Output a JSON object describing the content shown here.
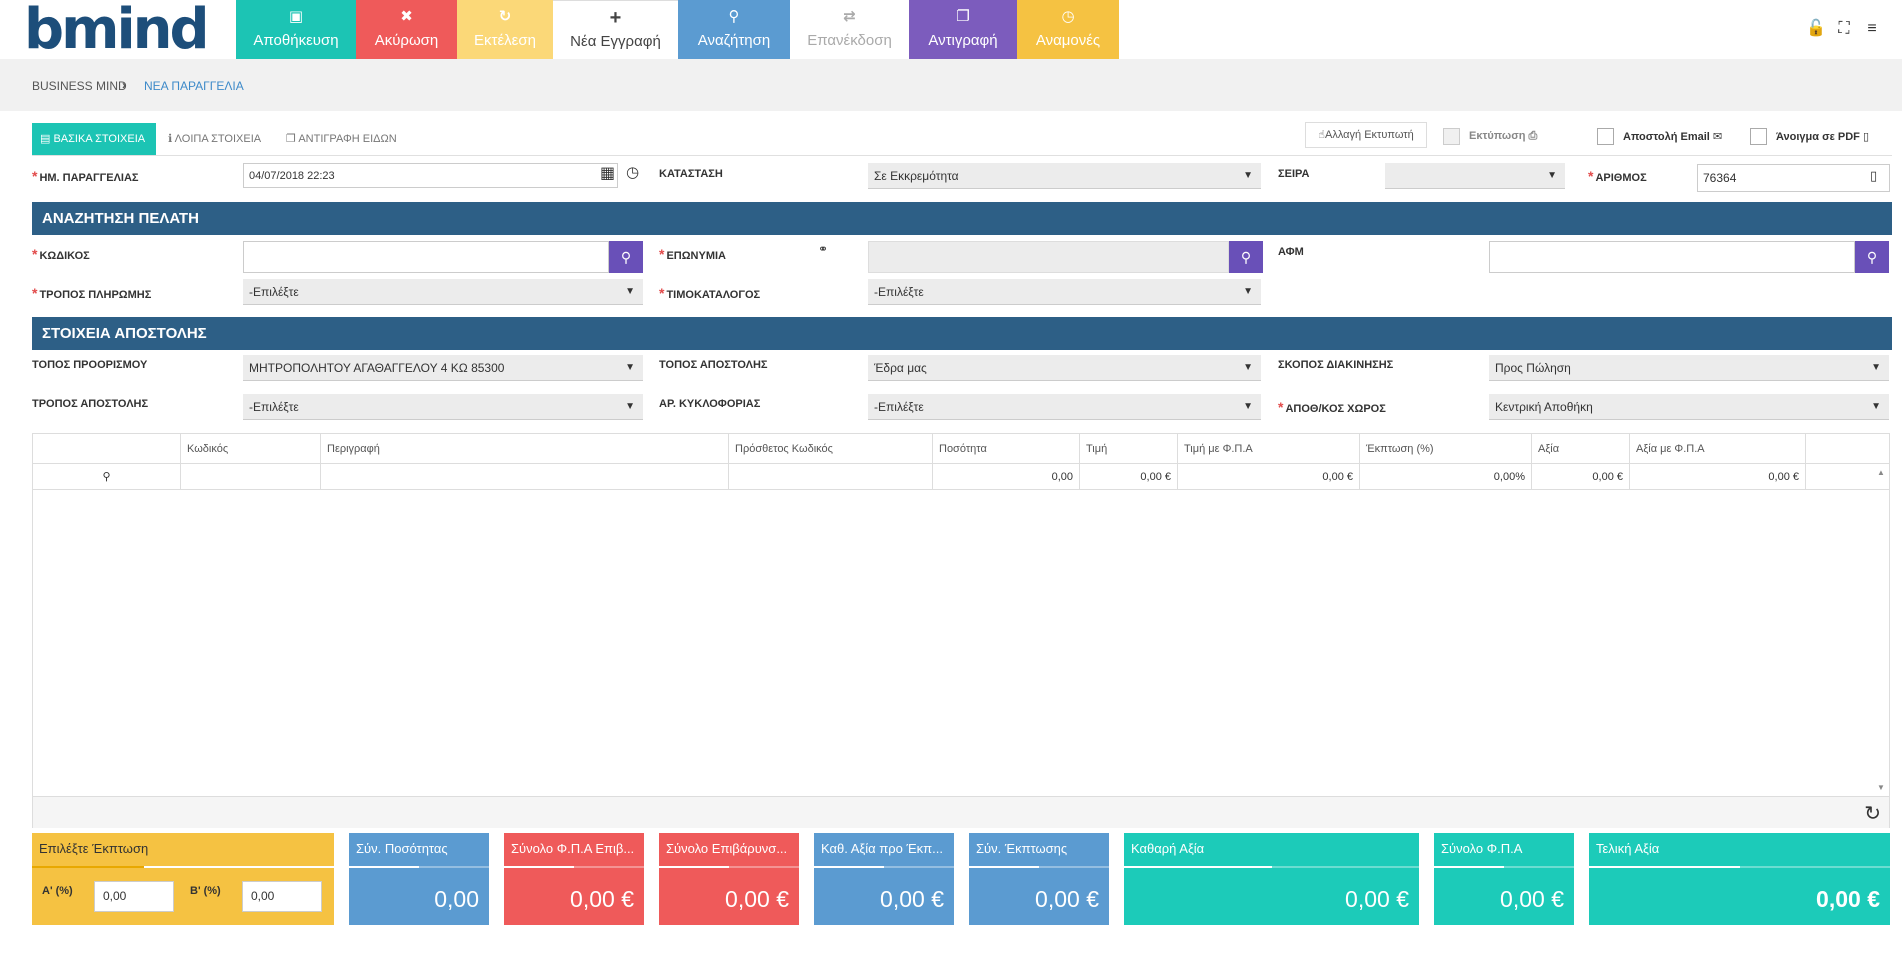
{
  "logo": {
    "text": "bmind"
  },
  "toolbar": [
    {
      "id": "save",
      "icon": "save-icon",
      "glyph": "▣",
      "label": "Αποθήκευση"
    },
    {
      "id": "cancel",
      "icon": "trash-icon",
      "glyph": "🗑",
      "label": "Ακύρωση"
    },
    {
      "id": "run",
      "icon": "refresh-icon",
      "glyph": "↻",
      "label": "Εκτέλεση"
    },
    {
      "id": "new",
      "icon": "plus-icon",
      "glyph": "+",
      "label": "Νέα Εγγραφή"
    },
    {
      "id": "search",
      "icon": "search-icon",
      "glyph": "⚲",
      "label": "Αναζήτηση"
    },
    {
      "id": "reissue",
      "icon": "retweet-icon",
      "glyph": "⇄",
      "label": "Επανέκδοση"
    },
    {
      "id": "copy",
      "icon": "copy-icon",
      "glyph": "❐",
      "label": "Αντιγραφή"
    },
    {
      "id": "pend",
      "icon": "clock-icon",
      "glyph": "◷",
      "label": "Αναμονές"
    }
  ],
  "breadcrumb": {
    "root": "BUSINESS MIND",
    "sep": "›",
    "current": "ΝΕΑ ΠΑΡΑΓΓΕΛΙΑ"
  },
  "tabs": {
    "basic": "ΒΑΣΙΚΑ ΣΤΟΙΧΕΙΑ",
    "other": "ΛΟΙΠΑ ΣΤΟΙΧΕΙΑ",
    "copyitems": "ΑΝΤΙΓΡΑΦΗ ΕΙΔΩΝ"
  },
  "print": {
    "change_printer": "Αλλαγή Εκτυπωτή",
    "print": "Εκτύπωση",
    "send_email": "Αποστολή Email",
    "open_pdf": "Άνοιγμα σε PDF"
  },
  "header_fields": {
    "order_date_label": "ΗΜ. ΠΑΡΑΓΓΕΛΙΑΣ",
    "order_date": "04/07/2018 22:23",
    "status_label": "ΚΑΤΑΣΤΑΣΗ",
    "status": "Σε Εκκρεμότητα",
    "series_label": "ΣΕΙΡΑ",
    "series": "",
    "number_label": "ΑΡΙΘΜΟΣ",
    "number": "76364"
  },
  "customer": {
    "section": "ΑΝΑΖΗΤΗΣΗ ΠΕΛΑΤΗ",
    "code_label": "ΚΩΔΙΚΟΣ",
    "code": "",
    "name_label": "ΕΠΩΝΥΜΙΑ",
    "name": "",
    "vat_label": "ΑΦΜ",
    "vat": "",
    "payment_label": "ΤΡΟΠΟΣ ΠΛΗΡΩΜΗΣ",
    "payment": "-Επιλέξτε",
    "pricelist_label": "ΤΙΜΟΚΑΤΑΛΟΓΟΣ",
    "pricelist": "-Επιλέξτε"
  },
  "shipping": {
    "section": "ΣΤΟΙΧΕΙΑ ΑΠΟΣΤΟΛΗΣ",
    "destination_label": "ΤΟΠΟΣ ΠΡΟΟΡΙΣΜΟΥ",
    "destination": "ΜΗΤΡΟΠΟΛΗΤΟΥ ΑΓΑΘΑΓΓΕΛΟΥ 4 ΚΩ 85300",
    "origin_label": "ΤΟΠΟΣ ΑΠΟΣΤΟΛΗΣ",
    "origin": "Έδρα μας",
    "purpose_label": "ΣΚΟΠΟΣ ΔΙΑΚΙΝΗΣΗΣ",
    "purpose": "Προς Πώληση",
    "method_label": "ΤΡΟΠΟΣ ΑΠΟΣΤΟΛΗΣ",
    "method": "-Επιλέξτε",
    "plate_label": "ΑΡ. ΚΥΚΛΟΦΟΡΙΑΣ",
    "plate": "-Επιλέξτε",
    "warehouse_label": "ΑΠΟΘ/ΚΟΣ ΧΩΡΟΣ",
    "warehouse": "Κεντρική Αποθήκη"
  },
  "grid": {
    "columns": [
      "",
      "Κωδικός",
      "Περιγραφή",
      "Πρόσθετος Κωδικός",
      "Ποσότητα",
      "Τιμή",
      "Τιμή με Φ.Π.Α",
      "Έκπτωση (%)",
      "Αξία",
      "Αξία με Φ.Π.Α"
    ],
    "row": [
      "",
      "",
      "",
      "",
      "0,00",
      "0,00 €",
      "0,00 €",
      "0,00%",
      "0,00 €",
      "0,00 €"
    ]
  },
  "summary": {
    "discount_title": "Επιλέξτε Έκπτωση",
    "disc_a_label": "Α' (%)",
    "disc_a": "0,00",
    "disc_b_label": "Β' (%)",
    "disc_b": "0,00",
    "cards": [
      {
        "title": "Σύν. Ποσότητας",
        "value": "0,00"
      },
      {
        "title": "Σύνολο Φ.Π.Α Επιβ...",
        "value": "0,00 €"
      },
      {
        "title": "Σύνολο Επιβάρυνσ...",
        "value": "0,00 €"
      },
      {
        "title": "Καθ. Αξία προ Έκπ...",
        "value": "0,00 €"
      },
      {
        "title": "Σύν. Έκπτωσης",
        "value": "0,00 €"
      },
      {
        "title": "Καθαρή Αξία",
        "value": "0,00 €"
      },
      {
        "title": "Σύνολο Φ.Π.Α",
        "value": "0,00 €"
      },
      {
        "title": "Τελική Αξία",
        "value": "0,00 €"
      }
    ]
  },
  "colors": {
    "teal": "#1cc4b4",
    "red": "#ef5a5a",
    "blue": "#5b9bd1",
    "purple": "#7c5cbd",
    "yellow": "#f5c242",
    "section": "#2d5f86"
  }
}
